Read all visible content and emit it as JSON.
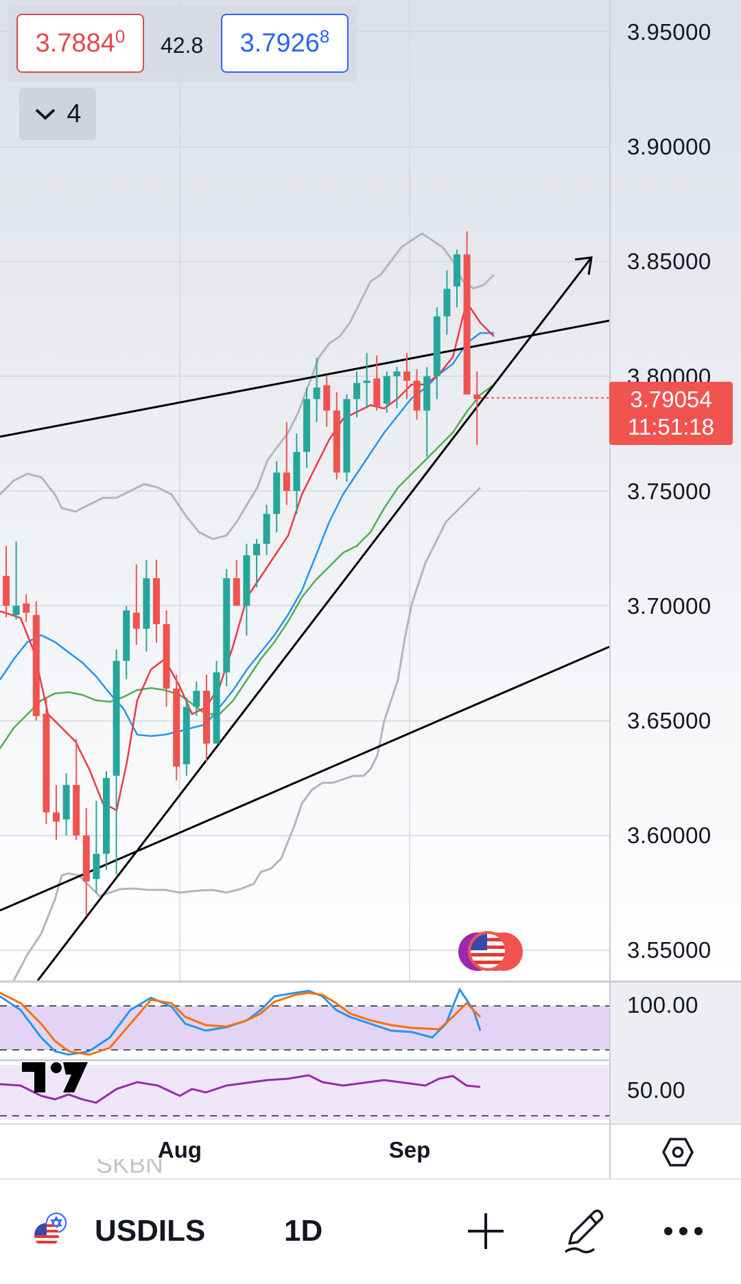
{
  "quote": {
    "sell_main": "3.7884",
    "sell_sup": "0",
    "spread": "42.8",
    "buy_main": "3.7926",
    "buy_sup": "8"
  },
  "indicators_collapse": {
    "count": "4"
  },
  "price_axis": {
    "labels": [
      "3.95000",
      "3.90000",
      "3.85000",
      "3.80000",
      "3.75000",
      "3.70000",
      "3.65000",
      "3.60000",
      "3.55000"
    ],
    "last_price": "3.79054",
    "countdown": "11:51:18"
  },
  "rsi_axis": {
    "upper": "100.00",
    "mid": "50.00"
  },
  "time_axis": {
    "labels": [
      "Aug",
      "Sep"
    ]
  },
  "partial_text": {
    "behind_bar_top": "SKBN"
  },
  "bottom_bar": {
    "symbol": "USDILS",
    "interval": "1D"
  },
  "colors": {
    "up": "#26a69a",
    "down": "#ef5350",
    "ma_fast": "#f23645",
    "ma_mid": "#2196f3",
    "ma_slow": "#4caf50",
    "bollinger": "#b2b5be",
    "rsi_k": "#2196f3",
    "rsi_d": "#ff6d00",
    "rsi_line": "#9c27b0",
    "rsi_band": "#e3d4f5"
  },
  "icons": {
    "collapse": "chevron-down-icon",
    "flag": "us-flag-icon",
    "add": "plus-icon",
    "draw": "pencil-icon",
    "more": "more-horizontal-icon",
    "settings": "hexagon-settings-icon",
    "logo": "tradingview-logo"
  }
}
